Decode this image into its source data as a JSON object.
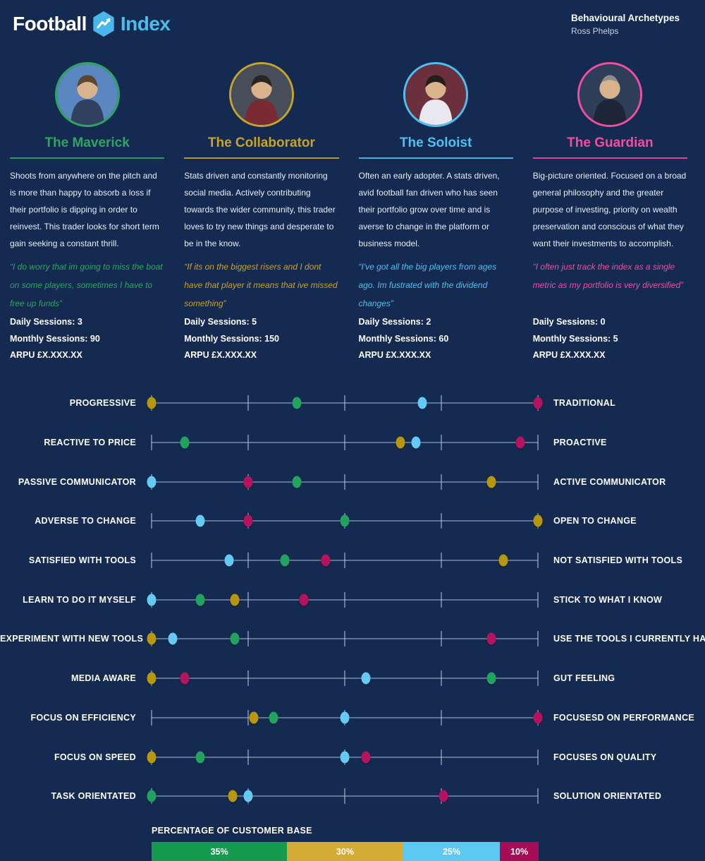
{
  "colors": {
    "background": "#152A50",
    "dots": {
      "green": "#21A35F",
      "gold": "#B6970F",
      "blue": "#63CBF3",
      "pink": "#B5125F"
    },
    "track": "rgba(190,205,228,0.45)"
  },
  "header": {
    "logo_football": "Football",
    "logo_index": "Index",
    "title": "Behavioural Archetypes",
    "author": "Ross Phelps"
  },
  "personas": [
    {
      "name": "The Maverick",
      "color": "#2FA463",
      "avatar_bg": "#5B87C0",
      "description": "Shoots from anywhere on the pitch and  is more than happy to absorb a loss if their portfolio is dipping in order to reinvest. This trader looks for short term gain seeking a constant thrill.",
      "quote": "“I do worry that im going to miss the boat on some players, sometimes I have to free up funds”",
      "stats": [
        "Daily Sessions: 3",
        "Monthly Sessions: 90",
        "ARPU £X.XXX.XX"
      ]
    },
    {
      "name": "The Collaborator",
      "color": "#C6A32B",
      "avatar_bg": "#474E5A",
      "description": "Stats driven and constantly monitoring social media. Actively contributing towards the wider community, this trader loves to try new things and desperate to be in the know.",
      "quote": "“If its on the biggest risers and I dont have that player it means that ive missed something”",
      "stats": [
        "Daily Sessions: 5",
        "Monthly Sessions: 150",
        "ARPU £X.XXX.XX"
      ]
    },
    {
      "name": "The Soloist",
      "color": "#4FC0EF",
      "avatar_bg": "#6B2F3E",
      "description": "Often an early adopter. A stats driven, avid football fan driven who has seen their portfolio grow over time and is averse to change in the platform or business model.",
      "quote": "“I've got all the big players from ages ago. Im fustrated with the dividend changes”",
      "stats": [
        "Daily Sessions: 2",
        "Monthly Sessions: 60",
        "ARPU £X.XXX.XX"
      ]
    },
    {
      "name": "The Guardian",
      "color": "#F24DA1",
      "avatar_bg": "#2E3D58",
      "description": "Big-picture oriented. Focused on a broad general philosophy and the greater purpose of investing, priority on wealth preservation and  conscious of what they want their investments to accomplish.",
      "quote": "“I often just track the index as a single metric as my portfolio is very diversified”",
      "stats": [
        "Daily Sessions: 0",
        "Monthly Sessions: 5",
        "ARPU £X.XXX.XX"
      ]
    }
  ],
  "spectrum": {
    "rows": [
      {
        "left": "PROGRESSIVE",
        "right": "TRADITIONAL",
        "dots": [
          {
            "c": "gold",
            "p": 0
          },
          {
            "c": "green",
            "p": 37.5
          },
          {
            "c": "blue",
            "p": 70
          },
          {
            "c": "pink",
            "p": 100
          }
        ]
      },
      {
        "left": "REACTIVE TO PRICE",
        "right": "PROACTIVE",
        "dots": [
          {
            "c": "green",
            "p": 8.5
          },
          {
            "c": "gold",
            "p": 64.5
          },
          {
            "c": "blue",
            "p": 68.5
          },
          {
            "c": "pink",
            "p": 95.5
          }
        ]
      },
      {
        "left": "PASSIVE COMMUNICATOR",
        "right": "ACTIVE COMMUNICATOR",
        "dots": [
          {
            "c": "blue",
            "p": 0
          },
          {
            "c": "pink",
            "p": 25
          },
          {
            "c": "green",
            "p": 37.5
          },
          {
            "c": "gold",
            "p": 88
          }
        ]
      },
      {
        "left": "ADVERSE TO CHANGE",
        "right": "OPEN TO CHANGE",
        "dots": [
          {
            "c": "blue",
            "p": 12.5
          },
          {
            "c": "pink",
            "p": 25
          },
          {
            "c": "green",
            "p": 50
          },
          {
            "c": "gold",
            "p": 100
          }
        ]
      },
      {
        "left": "SATISFIED WITH TOOLS",
        "right": "NOT SATISFIED WITH TOOLS",
        "dots": [
          {
            "c": "blue",
            "p": 20
          },
          {
            "c": "green",
            "p": 34.5
          },
          {
            "c": "pink",
            "p": 45
          },
          {
            "c": "gold",
            "p": 91
          }
        ]
      },
      {
        "left": "LEARN TO DO IT MYSELF",
        "right": "STICK TO WHAT I KNOW",
        "dots": [
          {
            "c": "blue",
            "p": 0
          },
          {
            "c": "green",
            "p": 12.5
          },
          {
            "c": "gold",
            "p": 21.5
          },
          {
            "c": "pink",
            "p": 39.5
          }
        ]
      },
      {
        "left": "EXPERIMENT WITH NEW TOOLS",
        "right": "USE THE TOOLS I CURRENTLY HAVE",
        "dots": [
          {
            "c": "gold",
            "p": 0
          },
          {
            "c": "blue",
            "p": 5.5
          },
          {
            "c": "green",
            "p": 21.5
          },
          {
            "c": "pink",
            "p": 88
          }
        ]
      },
      {
        "left": "MEDIA AWARE",
        "right": "GUT FEELING",
        "dots": [
          {
            "c": "gold",
            "p": 0
          },
          {
            "c": "pink",
            "p": 8.5
          },
          {
            "c": "blue",
            "p": 55.5
          },
          {
            "c": "green",
            "p": 88
          }
        ]
      },
      {
        "left": "FOCUS ON EFFICIENCY",
        "right": "FOCUSESD ON PERFORMANCE",
        "dots": [
          {
            "c": "gold",
            "p": 26.5
          },
          {
            "c": "green",
            "p": 31.5
          },
          {
            "c": "blue",
            "p": 50
          },
          {
            "c": "pink",
            "p": 100
          }
        ]
      },
      {
        "left": "FOCUS ON SPEED",
        "right": "FOCUSES ON QUALITY",
        "dots": [
          {
            "c": "gold",
            "p": 0
          },
          {
            "c": "green",
            "p": 12.5
          },
          {
            "c": "blue",
            "p": 50
          },
          {
            "c": "pink",
            "p": 55.5
          }
        ]
      },
      {
        "left": "TASK ORIENTATED",
        "right": "SOLUTION ORIENTATED",
        "dots": [
          {
            "c": "green",
            "p": 0
          },
          {
            "c": "gold",
            "p": 21
          },
          {
            "c": "blue",
            "p": 25
          },
          {
            "c": "pink",
            "p": 75.5
          }
        ]
      }
    ]
  },
  "legend": {
    "title": "PERCENTAGE OF CUSTOMER BASE",
    "segments": [
      {
        "label": "35%",
        "value": 35,
        "color": "#149B4F"
      },
      {
        "label": "30%",
        "value": 30,
        "color": "#D4AC33"
      },
      {
        "label": "25%",
        "value": 25,
        "color": "#5BC9F0"
      },
      {
        "label": "10%",
        "value": 10,
        "color": "#A60D56"
      }
    ]
  },
  "chart_data": {
    "type": "scatter",
    "title": "Behavioural Archetypes",
    "scale": [
      0,
      100
    ],
    "categories": [
      [
        "PROGRESSIVE",
        "TRADITIONAL"
      ],
      [
        "REACTIVE TO PRICE",
        "PROACTIVE"
      ],
      [
        "PASSIVE COMMUNICATOR",
        "ACTIVE COMMUNICATOR"
      ],
      [
        "ADVERSE TO CHANGE",
        "OPEN TO CHANGE"
      ],
      [
        "SATISFIED WITH TOOLS",
        "NOT SATISFIED WITH TOOLS"
      ],
      [
        "LEARN TO DO IT MYSELF",
        "STICK TO WHAT I KNOW"
      ],
      [
        "EXPERIMENT WITH NEW TOOLS",
        "USE THE TOOLS I CURRENTLY HAVE"
      ],
      [
        "MEDIA AWARE",
        "GUT FEELING"
      ],
      [
        "FOCUS ON EFFICIENCY",
        "FOCUSESD ON PERFORMANCE"
      ],
      [
        "FOCUS ON SPEED",
        "FOCUSES ON QUALITY"
      ],
      [
        "TASK ORIENTATED",
        "SOLUTION ORIENTATED"
      ]
    ],
    "series": [
      {
        "name": "The Maverick",
        "color": "#21A35F",
        "customer_base_pct": 35,
        "values": [
          37.5,
          8.5,
          37.5,
          50,
          34.5,
          12.5,
          21.5,
          88,
          31.5,
          12.5,
          0
        ]
      },
      {
        "name": "The Collaborator",
        "color": "#B6970F",
        "customer_base_pct": 30,
        "values": [
          0,
          64.5,
          88,
          100,
          91,
          21.5,
          0,
          0,
          26.5,
          0,
          21
        ]
      },
      {
        "name": "The Soloist",
        "color": "#63CBF3",
        "customer_base_pct": 25,
        "values": [
          70,
          68.5,
          0,
          12.5,
          20,
          0,
          5.5,
          55.5,
          50,
          50,
          25
        ]
      },
      {
        "name": "The Guardian",
        "color": "#B5125F",
        "customer_base_pct": 10,
        "values": [
          100,
          95.5,
          25,
          25,
          45,
          39.5,
          88,
          8.5,
          100,
          55.5,
          75.5
        ]
      }
    ],
    "legend_title": "PERCENTAGE OF CUSTOMER BASE",
    "legend_position": "bottom",
    "grid": "ticks at 0/25/50/75/100 on each row"
  }
}
